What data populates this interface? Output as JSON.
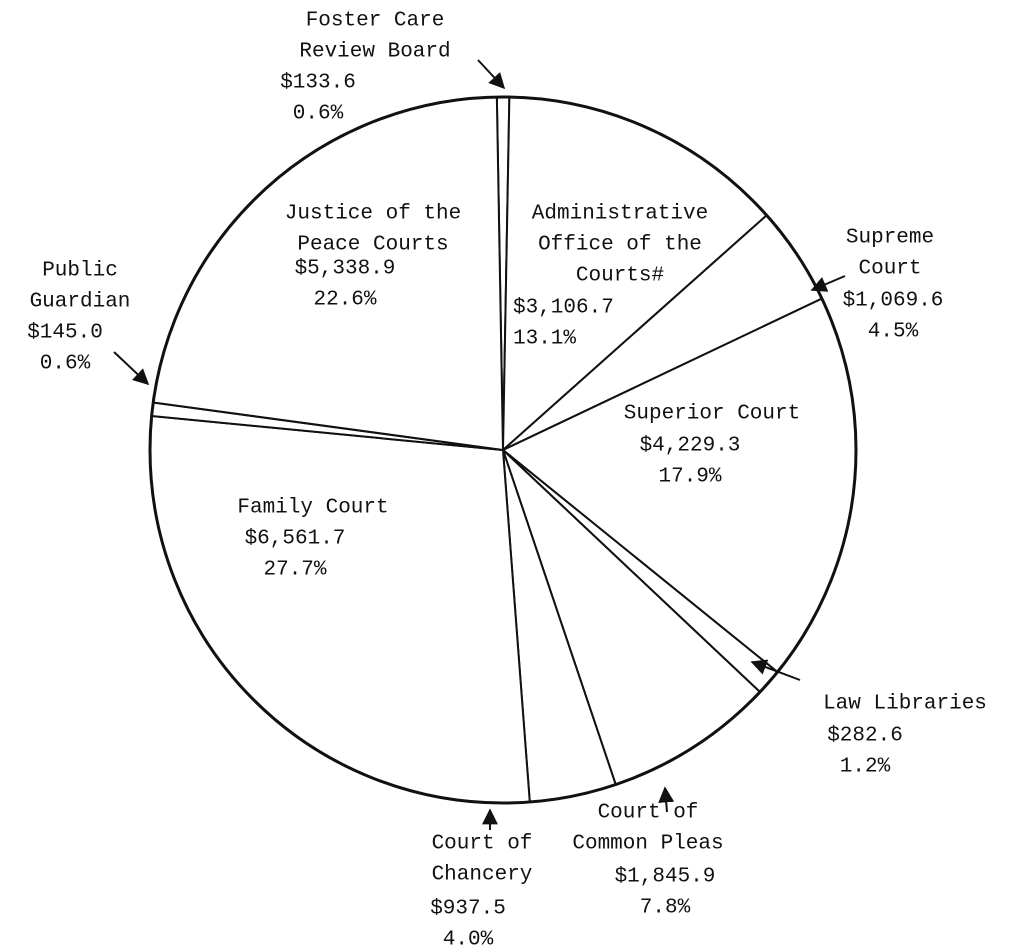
{
  "chart_data": {
    "type": "pie",
    "categories": [
      [
        "Foster Care",
        "Review Board"
      ],
      [
        "Administrative",
        "Office of the",
        "Courts#"
      ],
      [
        "Supreme",
        "Court"
      ],
      [
        "Superior Court"
      ],
      [
        "Law Libraries"
      ],
      [
        "Court of",
        "Common Pleas"
      ],
      [
        "Court of",
        "Chancery"
      ],
      [
        "Family Court"
      ],
      [
        "Public",
        "Guardian"
      ],
      [
        "Justice of the",
        "Peace Courts"
      ]
    ],
    "values": [
      133.6,
      3106.7,
      1069.6,
      4229.3,
      282.6,
      1845.9,
      937.5,
      6561.7,
      145.0,
      5338.9
    ],
    "value_labels": [
      "$133.6",
      "$3,106.7",
      "$1,069.6",
      "$4,229.3",
      "$282.6",
      "$1,845.9",
      "$937.5",
      "$6,561.7",
      "$145.0",
      "$5,338.9"
    ],
    "percents": [
      0.6,
      13.1,
      4.5,
      17.9,
      1.2,
      7.8,
      4.0,
      27.7,
      0.6,
      22.6
    ],
    "percent_labels": [
      "0.6%",
      "13.1%",
      "4.5%",
      "17.9%",
      "1.2%",
      "7.8%",
      "4.0%",
      "27.7%",
      "0.6%",
      "22.6%"
    ],
    "color": "#ffffff"
  }
}
